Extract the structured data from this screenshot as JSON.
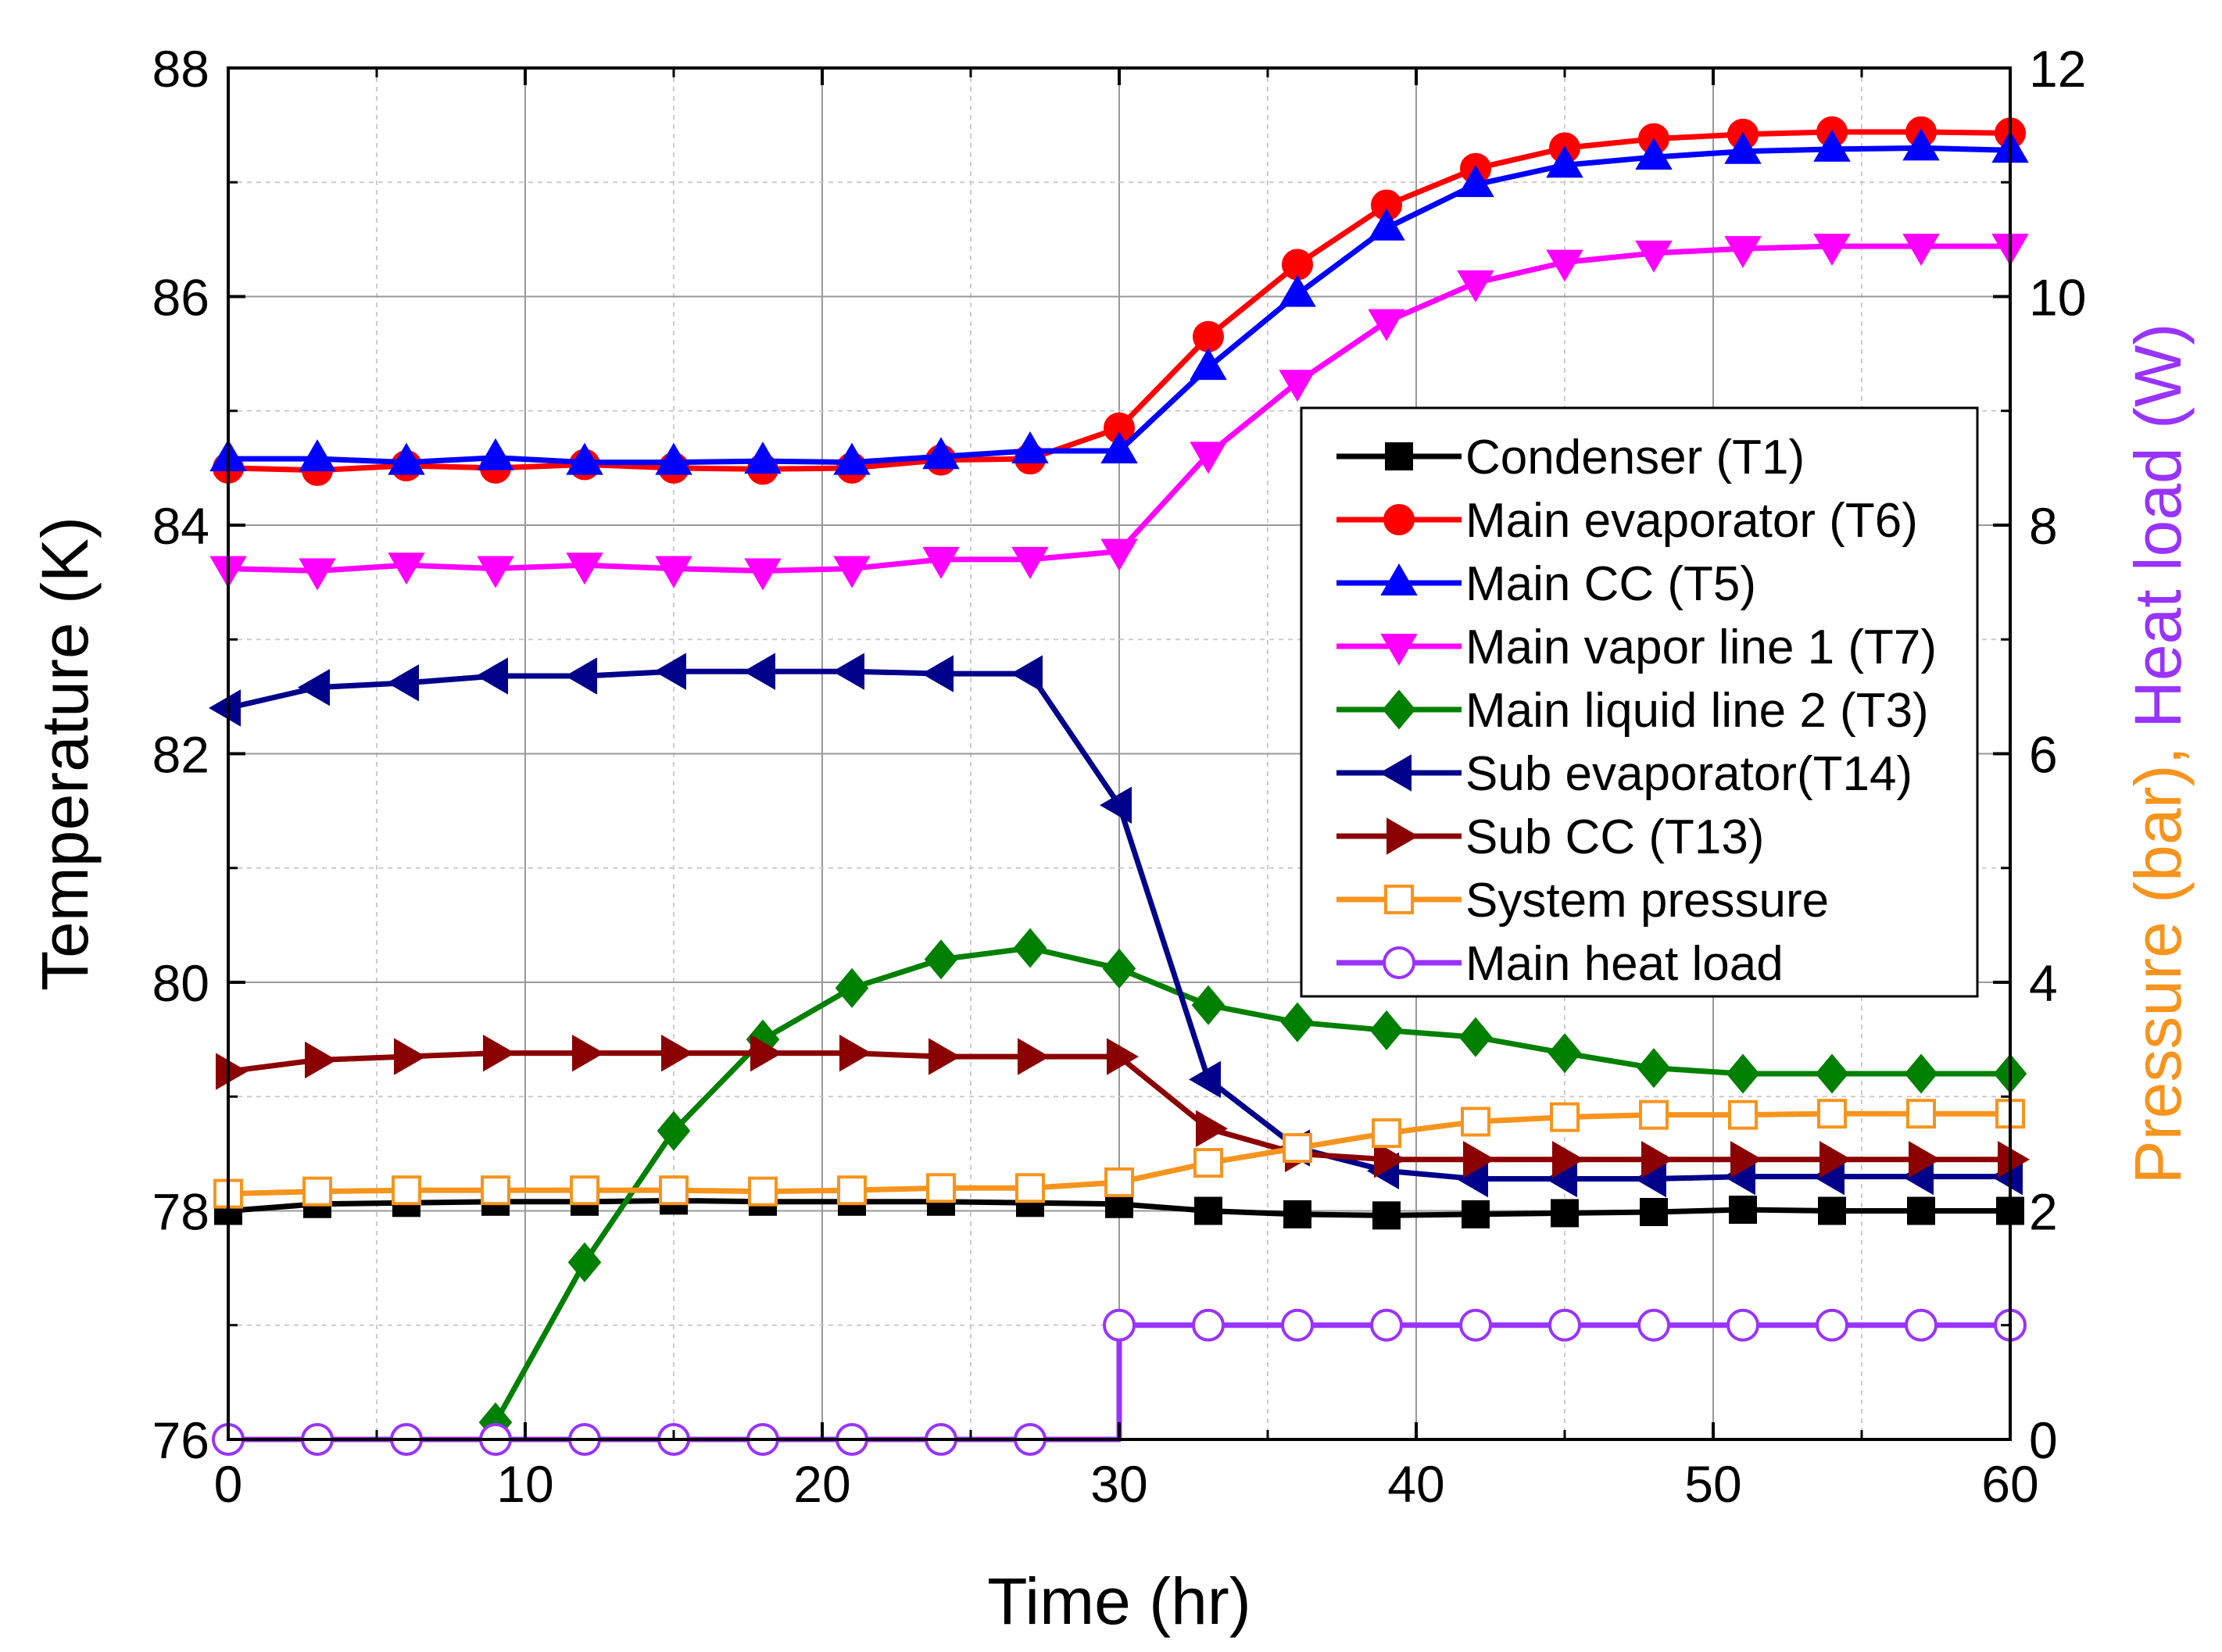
{
  "chart_data": {
    "type": "line",
    "xlabel": "Time (hr)",
    "ylabel": "Temperature (K)",
    "y2label_parts": [
      {
        "text": "Pressure (bar)",
        "color": "#f7941d"
      },
      {
        "text": ", ",
        "color": "#f7941d"
      },
      {
        "text": "Heat load (W)",
        "color": "#9933ff"
      }
    ],
    "xlim": [
      0,
      60
    ],
    "ylim": [
      76,
      88
    ],
    "y2lim": [
      0,
      12
    ],
    "xticks": [
      0,
      10,
      20,
      30,
      40,
      50,
      60
    ],
    "yticks": [
      76,
      78,
      80,
      82,
      84,
      86,
      88
    ],
    "y2ticks": [
      0,
      2,
      4,
      6,
      8,
      10,
      12
    ],
    "grid": true,
    "legend_position": "center-right",
    "series": [
      {
        "name": "Condenser (T1)",
        "color": "#000000",
        "marker": "square",
        "filled": true,
        "axis": "left",
        "x": [
          0,
          3,
          6,
          9,
          12,
          15,
          18,
          21,
          24,
          27,
          30,
          33,
          36,
          39,
          42,
          45,
          48,
          51,
          54,
          57,
          60
        ],
        "y": [
          78.0,
          78.06,
          78.07,
          78.08,
          78.08,
          78.09,
          78.08,
          78.08,
          78.08,
          78.07,
          78.06,
          78.0,
          77.97,
          77.96,
          77.97,
          77.98,
          77.99,
          78.01,
          78.0,
          78.0,
          78.0
        ]
      },
      {
        "name": "Main evaporator (T6)",
        "color": "#ff0000",
        "marker": "circle",
        "filled": true,
        "axis": "left",
        "x": [
          0,
          3,
          6,
          9,
          12,
          15,
          18,
          21,
          24,
          27,
          30,
          33,
          36,
          39,
          42,
          45,
          48,
          51,
          54,
          57,
          60
        ],
        "y": [
          84.5,
          84.48,
          84.52,
          84.5,
          84.53,
          84.5,
          84.49,
          84.5,
          84.57,
          84.58,
          84.85,
          85.65,
          86.28,
          86.8,
          87.12,
          87.3,
          87.38,
          87.42,
          87.44,
          87.44,
          87.43
        ]
      },
      {
        "name": "Main CC (T5)",
        "color": "#0000ff",
        "marker": "triangle-up",
        "filled": true,
        "axis": "left",
        "x": [
          0,
          3,
          6,
          9,
          12,
          15,
          18,
          21,
          24,
          27,
          30,
          33,
          36,
          39,
          42,
          45,
          48,
          51,
          54,
          57,
          60
        ],
        "y": [
          84.58,
          84.58,
          84.55,
          84.59,
          84.55,
          84.55,
          84.56,
          84.55,
          84.6,
          84.65,
          84.65,
          85.38,
          86.02,
          86.6,
          86.98,
          87.15,
          87.22,
          87.27,
          87.29,
          87.3,
          87.28
        ]
      },
      {
        "name": "Main vapor line 1 (T7)",
        "color": "#ff00ff",
        "marker": "triangle-down",
        "filled": true,
        "axis": "left",
        "x": [
          0,
          3,
          6,
          9,
          12,
          15,
          18,
          21,
          24,
          27,
          30,
          33,
          36,
          39,
          42,
          45,
          48,
          51,
          54,
          57,
          60
        ],
        "y": [
          83.62,
          83.6,
          83.65,
          83.62,
          83.65,
          83.62,
          83.6,
          83.62,
          83.7,
          83.7,
          83.77,
          84.62,
          85.25,
          85.78,
          86.12,
          86.3,
          86.38,
          86.42,
          86.44,
          86.44,
          86.44
        ]
      },
      {
        "name": "Main liquid line 2 (T3)",
        "color": "#008000",
        "marker": "diamond",
        "filled": true,
        "axis": "left",
        "x": [
          9,
          12,
          15,
          18,
          21,
          24,
          27,
          30,
          33,
          36,
          39,
          42,
          45,
          48,
          51,
          54,
          57,
          60
        ],
        "y": [
          76.15,
          77.55,
          78.7,
          79.5,
          79.95,
          80.2,
          80.3,
          80.12,
          79.8,
          79.65,
          79.58,
          79.52,
          79.38,
          79.25,
          79.2,
          79.2,
          79.2,
          79.2
        ]
      },
      {
        "name": "Sub evaporator(T14)",
        "color": "#00008b",
        "marker": "triangle-left",
        "filled": true,
        "axis": "left",
        "x": [
          0,
          3,
          6,
          9,
          12,
          15,
          18,
          21,
          24,
          27,
          30,
          33,
          36,
          39,
          42,
          45,
          48,
          51,
          54,
          57,
          60
        ],
        "y": [
          82.4,
          82.58,
          82.62,
          82.68,
          82.68,
          82.72,
          82.72,
          82.72,
          82.7,
          82.7,
          81.55,
          79.15,
          78.55,
          78.35,
          78.28,
          78.28,
          78.28,
          78.3,
          78.3,
          78.3,
          78.3
        ]
      },
      {
        "name": "Sub CC (T13)",
        "color": "#8b0000",
        "marker": "triangle-right",
        "filled": true,
        "axis": "left",
        "x": [
          0,
          3,
          6,
          9,
          12,
          15,
          18,
          21,
          24,
          27,
          30,
          33,
          36,
          39,
          42,
          45,
          48,
          51,
          54,
          57,
          60
        ],
        "y": [
          79.22,
          79.32,
          79.35,
          79.38,
          79.38,
          79.38,
          79.38,
          79.38,
          79.35,
          79.35,
          79.35,
          78.72,
          78.5,
          78.45,
          78.45,
          78.45,
          78.45,
          78.45,
          78.45,
          78.45,
          78.45
        ]
      },
      {
        "name": "System pressure",
        "color": "#f7941d",
        "marker": "square",
        "filled": false,
        "axis": "right",
        "x": [
          0,
          3,
          6,
          9,
          12,
          15,
          18,
          21,
          24,
          27,
          30,
          33,
          36,
          39,
          42,
          45,
          48,
          51,
          54,
          57,
          60
        ],
        "y": [
          2.15,
          2.17,
          2.18,
          2.18,
          2.18,
          2.18,
          2.17,
          2.18,
          2.2,
          2.2,
          2.25,
          2.42,
          2.55,
          2.68,
          2.78,
          2.82,
          2.84,
          2.84,
          2.85,
          2.85,
          2.85
        ]
      },
      {
        "name": "Main heat load",
        "color": "#9933ff",
        "marker": "circle",
        "filled": false,
        "axis": "right",
        "x": [
          0,
          3,
          6,
          9,
          12,
          15,
          18,
          21,
          24,
          27,
          30,
          33,
          36,
          39,
          42,
          45,
          48,
          51,
          54,
          57,
          60
        ],
        "y": [
          0,
          0,
          0,
          0,
          0,
          0,
          0,
          0,
          0,
          0,
          1,
          1,
          1,
          1,
          1,
          1,
          1,
          1,
          1,
          1,
          1
        ]
      }
    ]
  }
}
